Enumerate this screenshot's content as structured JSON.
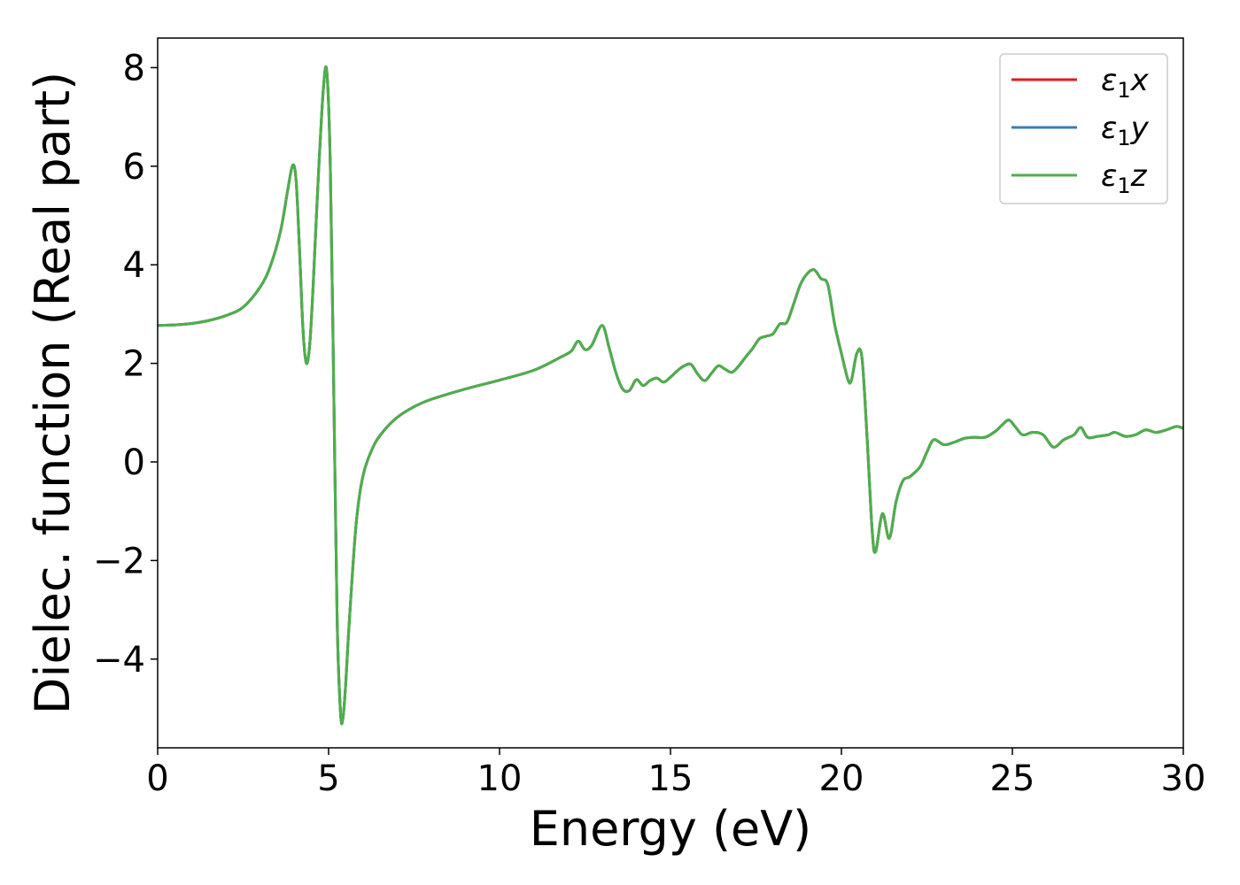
{
  "chart_data": {
    "type": "line",
    "title": "",
    "xlabel": "Energy (eV)",
    "ylabel": "Dielec. function (Real part)",
    "xlim": [
      0,
      30
    ],
    "ylim": [
      -5.8,
      8.6
    ],
    "xticks": [
      0,
      5,
      10,
      15,
      20,
      25,
      30
    ],
    "xtick_labels": [
      "0",
      "5",
      "10",
      "15",
      "20",
      "25",
      "30"
    ],
    "yticks": [
      -4,
      -2,
      0,
      2,
      4,
      6,
      8
    ],
    "ytick_labels": [
      "−4",
      "−2",
      "0",
      "2",
      "4",
      "6",
      "8"
    ],
    "grid": false,
    "legend_position": "top-right",
    "colors": {
      "x": "#e41a1c",
      "y": "#377eb8",
      "z": "#4daf4a"
    },
    "series": [
      {
        "name": "ε₁x",
        "legend_base": "ε",
        "legend_sub": "1",
        "legend_suffix": "x",
        "color": "#e41a1c",
        "x": [
          0,
          0.5,
          1.0,
          1.5,
          2.0,
          2.5,
          3.0,
          3.3,
          3.6,
          3.8,
          3.95,
          4.05,
          4.15,
          4.25,
          4.35,
          4.45,
          4.55,
          4.7,
          4.85,
          4.95,
          5.05,
          5.15,
          5.25,
          5.35,
          5.42,
          5.5,
          5.6,
          5.8,
          6.0,
          6.3,
          6.6,
          7.0,
          7.5,
          8.0,
          9.0,
          10.0,
          11.0,
          11.8,
          12.1,
          12.3,
          12.5,
          12.7,
          13.0,
          13.2,
          13.4,
          13.6,
          13.8,
          14.0,
          14.2,
          14.4,
          14.6,
          14.8,
          15.0,
          15.2,
          15.4,
          15.6,
          15.8,
          16.0,
          16.2,
          16.4,
          16.6,
          16.8,
          17.0,
          17.2,
          17.4,
          17.6,
          17.8,
          18.0,
          18.2,
          18.4,
          18.6,
          18.8,
          19.0,
          19.2,
          19.4,
          19.6,
          19.8,
          20.0,
          20.2,
          20.3,
          20.45,
          20.6,
          20.75,
          20.9,
          21.0,
          21.2,
          21.4,
          21.6,
          21.8,
          22.0,
          22.3,
          22.5,
          22.7,
          23.0,
          23.3,
          23.6,
          23.9,
          24.2,
          24.5,
          24.7,
          24.9,
          25.1,
          25.3,
          25.6,
          25.9,
          26.2,
          26.5,
          26.8,
          27.0,
          27.2,
          27.5,
          27.8,
          28.0,
          28.3,
          28.6,
          28.9,
          29.2,
          29.5,
          29.8,
          30.0
        ],
        "y": [
          2.77,
          2.78,
          2.81,
          2.87,
          2.97,
          3.14,
          3.55,
          3.98,
          4.7,
          5.5,
          6.02,
          5.7,
          4.3,
          2.7,
          2.0,
          2.4,
          3.6,
          5.8,
          7.6,
          7.9,
          6.0,
          1.5,
          -3.2,
          -5.1,
          -5.2,
          -4.5,
          -3.3,
          -1.3,
          -0.3,
          0.3,
          0.62,
          0.9,
          1.12,
          1.27,
          1.48,
          1.66,
          1.86,
          2.13,
          2.25,
          2.45,
          2.28,
          2.37,
          2.77,
          2.33,
          1.82,
          1.48,
          1.45,
          1.67,
          1.55,
          1.65,
          1.7,
          1.62,
          1.72,
          1.85,
          1.95,
          1.98,
          1.78,
          1.65,
          1.8,
          1.95,
          1.88,
          1.82,
          1.95,
          2.13,
          2.3,
          2.5,
          2.55,
          2.6,
          2.8,
          2.83,
          3.2,
          3.6,
          3.82,
          3.9,
          3.72,
          3.6,
          2.8,
          2.2,
          1.65,
          1.68,
          2.2,
          2.12,
          0.5,
          -1.4,
          -1.82,
          -1.05,
          -1.55,
          -0.8,
          -0.38,
          -0.3,
          -0.1,
          0.2,
          0.45,
          0.35,
          0.4,
          0.48,
          0.5,
          0.5,
          0.62,
          0.75,
          0.85,
          0.7,
          0.55,
          0.6,
          0.55,
          0.3,
          0.45,
          0.55,
          0.7,
          0.5,
          0.52,
          0.55,
          0.6,
          0.52,
          0.55,
          0.65,
          0.6,
          0.65,
          0.72,
          0.68
        ]
      },
      {
        "name": "ε₁y",
        "legend_base": "ε",
        "legend_sub": "1",
        "legend_suffix": "y",
        "color": "#377eb8",
        "x": [
          0,
          0.5,
          1.0,
          1.5,
          2.0,
          2.5,
          3.0,
          3.3,
          3.6,
          3.8,
          3.95,
          4.05,
          4.15,
          4.25,
          4.35,
          4.45,
          4.55,
          4.7,
          4.85,
          4.95,
          5.05,
          5.15,
          5.25,
          5.35,
          5.42,
          5.5,
          5.6,
          5.8,
          6.0,
          6.3,
          6.6,
          7.0,
          7.5,
          8.0,
          9.0,
          10.0,
          11.0,
          11.8,
          12.1,
          12.3,
          12.5,
          12.7,
          13.0,
          13.2,
          13.4,
          13.6,
          13.8,
          14.0,
          14.2,
          14.4,
          14.6,
          14.8,
          15.0,
          15.2,
          15.4,
          15.6,
          15.8,
          16.0,
          16.2,
          16.4,
          16.6,
          16.8,
          17.0,
          17.2,
          17.4,
          17.6,
          17.8,
          18.0,
          18.2,
          18.4,
          18.6,
          18.8,
          19.0,
          19.2,
          19.4,
          19.6,
          19.8,
          20.0,
          20.2,
          20.3,
          20.45,
          20.6,
          20.75,
          20.9,
          21.0,
          21.2,
          21.4,
          21.6,
          21.8,
          22.0,
          22.3,
          22.5,
          22.7,
          23.0,
          23.3,
          23.6,
          23.9,
          24.2,
          24.5,
          24.7,
          24.9,
          25.1,
          25.3,
          25.6,
          25.9,
          26.2,
          26.5,
          26.8,
          27.0,
          27.2,
          27.5,
          27.8,
          28.0,
          28.3,
          28.6,
          28.9,
          29.2,
          29.5,
          29.8,
          30.0
        ],
        "y": [
          2.77,
          2.78,
          2.81,
          2.87,
          2.97,
          3.14,
          3.55,
          3.98,
          4.7,
          5.5,
          6.02,
          5.7,
          4.3,
          2.7,
          2.0,
          2.4,
          3.6,
          5.8,
          7.6,
          7.9,
          6.0,
          1.5,
          -3.2,
          -5.1,
          -5.2,
          -4.5,
          -3.3,
          -1.3,
          -0.3,
          0.3,
          0.62,
          0.9,
          1.12,
          1.27,
          1.48,
          1.66,
          1.86,
          2.13,
          2.25,
          2.45,
          2.28,
          2.37,
          2.77,
          2.33,
          1.82,
          1.48,
          1.45,
          1.67,
          1.55,
          1.65,
          1.7,
          1.62,
          1.72,
          1.85,
          1.95,
          1.98,
          1.78,
          1.65,
          1.8,
          1.95,
          1.88,
          1.82,
          1.95,
          2.13,
          2.3,
          2.5,
          2.55,
          2.6,
          2.8,
          2.83,
          3.2,
          3.6,
          3.82,
          3.9,
          3.72,
          3.6,
          2.8,
          2.2,
          1.65,
          1.68,
          2.2,
          2.12,
          0.5,
          -1.4,
          -1.82,
          -1.05,
          -1.55,
          -0.8,
          -0.38,
          -0.3,
          -0.1,
          0.2,
          0.45,
          0.35,
          0.4,
          0.48,
          0.5,
          0.5,
          0.62,
          0.75,
          0.85,
          0.7,
          0.55,
          0.6,
          0.55,
          0.3,
          0.45,
          0.55,
          0.7,
          0.5,
          0.52,
          0.55,
          0.6,
          0.52,
          0.55,
          0.65,
          0.6,
          0.65,
          0.72,
          0.68
        ]
      },
      {
        "name": "ε₁z",
        "legend_base": "ε",
        "legend_sub": "1",
        "legend_suffix": "z",
        "color": "#4daf4a",
        "x": [
          0,
          0.5,
          1.0,
          1.5,
          2.0,
          2.5,
          3.0,
          3.3,
          3.6,
          3.8,
          3.95,
          4.05,
          4.15,
          4.25,
          4.35,
          4.45,
          4.55,
          4.7,
          4.85,
          4.95,
          5.05,
          5.15,
          5.25,
          5.35,
          5.42,
          5.5,
          5.6,
          5.8,
          6.0,
          6.3,
          6.6,
          7.0,
          7.5,
          8.0,
          9.0,
          10.0,
          11.0,
          11.8,
          12.1,
          12.3,
          12.5,
          12.7,
          13.0,
          13.2,
          13.4,
          13.6,
          13.8,
          14.0,
          14.2,
          14.4,
          14.6,
          14.8,
          15.0,
          15.2,
          15.4,
          15.6,
          15.8,
          16.0,
          16.2,
          16.4,
          16.6,
          16.8,
          17.0,
          17.2,
          17.4,
          17.6,
          17.8,
          18.0,
          18.2,
          18.4,
          18.6,
          18.8,
          19.0,
          19.2,
          19.4,
          19.6,
          19.8,
          20.0,
          20.2,
          20.3,
          20.45,
          20.6,
          20.75,
          20.9,
          21.0,
          21.2,
          21.4,
          21.6,
          21.8,
          22.0,
          22.3,
          22.5,
          22.7,
          23.0,
          23.3,
          23.6,
          23.9,
          24.2,
          24.5,
          24.7,
          24.9,
          25.1,
          25.3,
          25.6,
          25.9,
          26.2,
          26.5,
          26.8,
          27.0,
          27.2,
          27.5,
          27.8,
          28.0,
          28.3,
          28.6,
          28.9,
          29.2,
          29.5,
          29.8,
          30.0
        ],
        "y": [
          2.77,
          2.78,
          2.81,
          2.87,
          2.97,
          3.14,
          3.55,
          3.98,
          4.7,
          5.5,
          6.02,
          5.7,
          4.3,
          2.7,
          2.0,
          2.4,
          3.6,
          5.8,
          7.6,
          7.9,
          6.0,
          1.5,
          -3.2,
          -5.1,
          -5.2,
          -4.5,
          -3.3,
          -1.3,
          -0.3,
          0.3,
          0.62,
          0.9,
          1.12,
          1.27,
          1.48,
          1.66,
          1.86,
          2.13,
          2.25,
          2.45,
          2.28,
          2.37,
          2.77,
          2.33,
          1.82,
          1.48,
          1.45,
          1.67,
          1.55,
          1.65,
          1.7,
          1.62,
          1.72,
          1.85,
          1.95,
          1.98,
          1.78,
          1.65,
          1.8,
          1.95,
          1.88,
          1.82,
          1.95,
          2.13,
          2.3,
          2.5,
          2.55,
          2.6,
          2.8,
          2.83,
          3.2,
          3.6,
          3.82,
          3.9,
          3.72,
          3.6,
          2.8,
          2.2,
          1.65,
          1.68,
          2.2,
          2.12,
          0.5,
          -1.4,
          -1.82,
          -1.05,
          -1.55,
          -0.8,
          -0.38,
          -0.3,
          -0.1,
          0.2,
          0.45,
          0.35,
          0.4,
          0.48,
          0.5,
          0.5,
          0.62,
          0.75,
          0.85,
          0.7,
          0.55,
          0.6,
          0.55,
          0.3,
          0.45,
          0.55,
          0.7,
          0.5,
          0.52,
          0.55,
          0.6,
          0.52,
          0.55,
          0.65,
          0.6,
          0.65,
          0.72,
          0.68
        ]
      }
    ]
  }
}
